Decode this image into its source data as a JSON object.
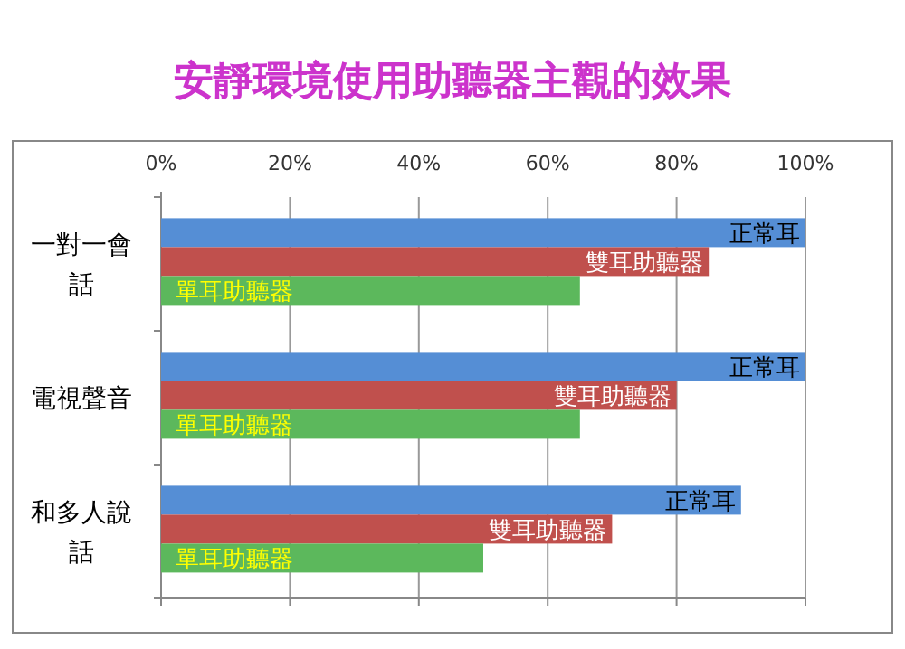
{
  "chart_data": {
    "type": "bar",
    "orientation": "horizontal",
    "title": "安靜環境使用助聽器主觀的效果",
    "categories": [
      "一對一會話",
      "電視聲音",
      "和多人說話"
    ],
    "series": [
      {
        "name": "正常耳",
        "color": "#558ed5",
        "values": [
          100,
          100,
          90
        ]
      },
      {
        "name": "雙耳助聽器",
        "color": "#c0504d",
        "values": [
          85,
          80,
          70
        ]
      },
      {
        "name": "單耳助聽器",
        "color": "#5cb85c",
        "values": [
          65,
          65,
          50
        ]
      }
    ],
    "xlim": [
      0,
      100
    ],
    "xticks": [
      {
        "value": 0,
        "label": "0%"
      },
      {
        "value": 20,
        "label": "20%"
      },
      {
        "value": 40,
        "label": "40%"
      },
      {
        "value": 60,
        "label": "60%"
      },
      {
        "value": 80,
        "label": "80%"
      },
      {
        "value": 100,
        "label": "100%"
      }
    ],
    "grid": "x"
  }
}
